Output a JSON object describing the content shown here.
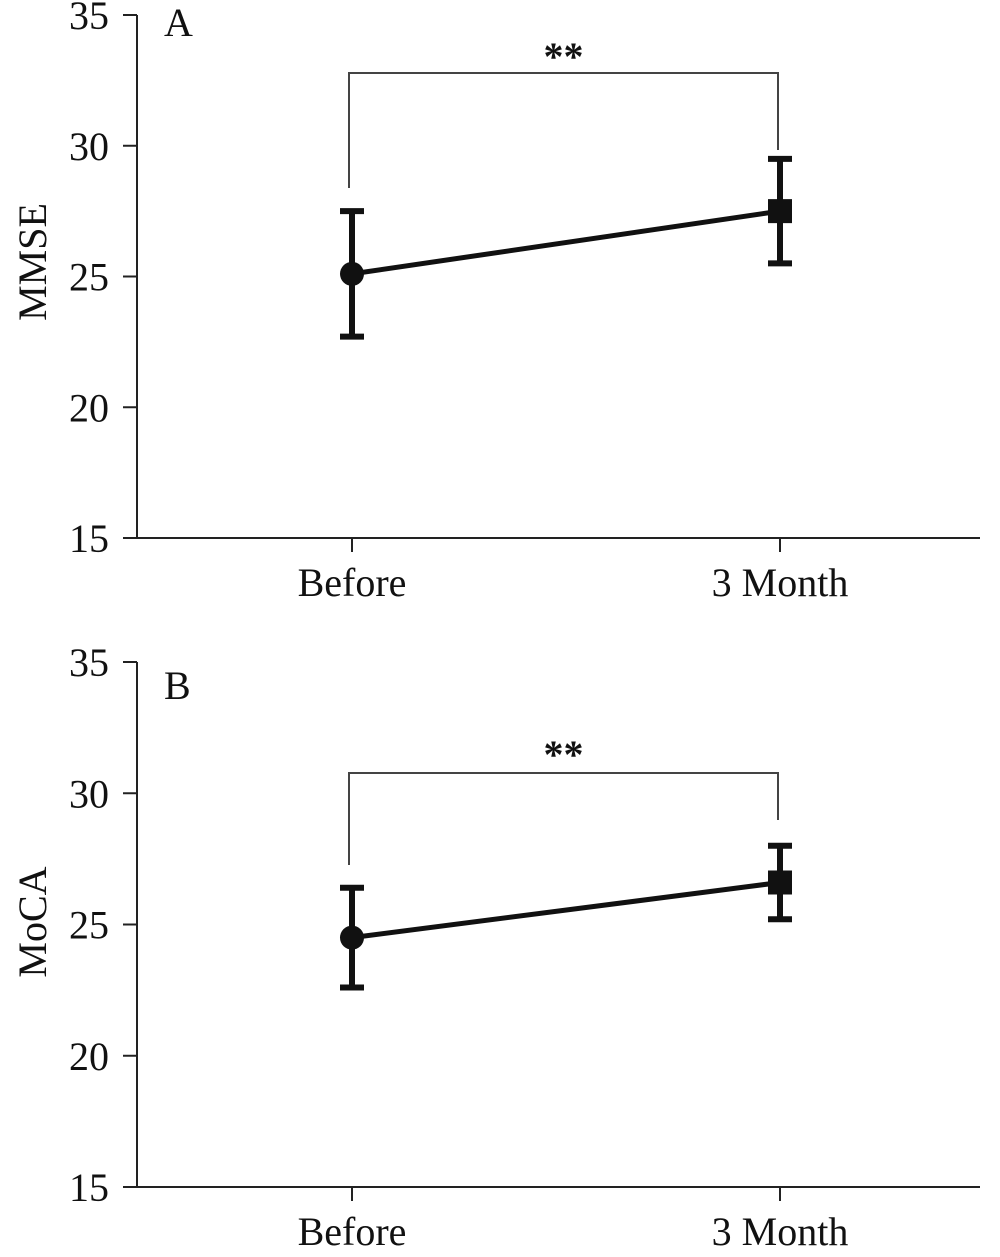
{
  "chart_data": [
    {
      "type": "line",
      "panel_label": "A",
      "ylabel": "MMSE",
      "xlabel": "",
      "ylim": [
        15,
        35
      ],
      "yticks": [
        15,
        20,
        25,
        30,
        35
      ],
      "categories": [
        "Before",
        "3 Month"
      ],
      "series": [
        {
          "values": [
            25.1,
            27.5
          ],
          "error": [
            2.4,
            2.0
          ],
          "markers": [
            "circle",
            "square"
          ]
        }
      ],
      "annotation": "**",
      "grid": false,
      "legend": "none"
    },
    {
      "type": "line",
      "panel_label": "B",
      "ylabel": "MoCA",
      "xlabel": "",
      "ylim": [
        15,
        35
      ],
      "yticks": [
        15,
        20,
        25,
        30,
        35
      ],
      "categories": [
        "Before",
        "3 Month"
      ],
      "series": [
        {
          "values": [
            24.5,
            26.6
          ],
          "error": [
            1.9,
            1.4
          ],
          "markers": [
            "circle",
            "square"
          ]
        }
      ],
      "annotation": "**",
      "grid": false,
      "legend": "none"
    }
  ]
}
